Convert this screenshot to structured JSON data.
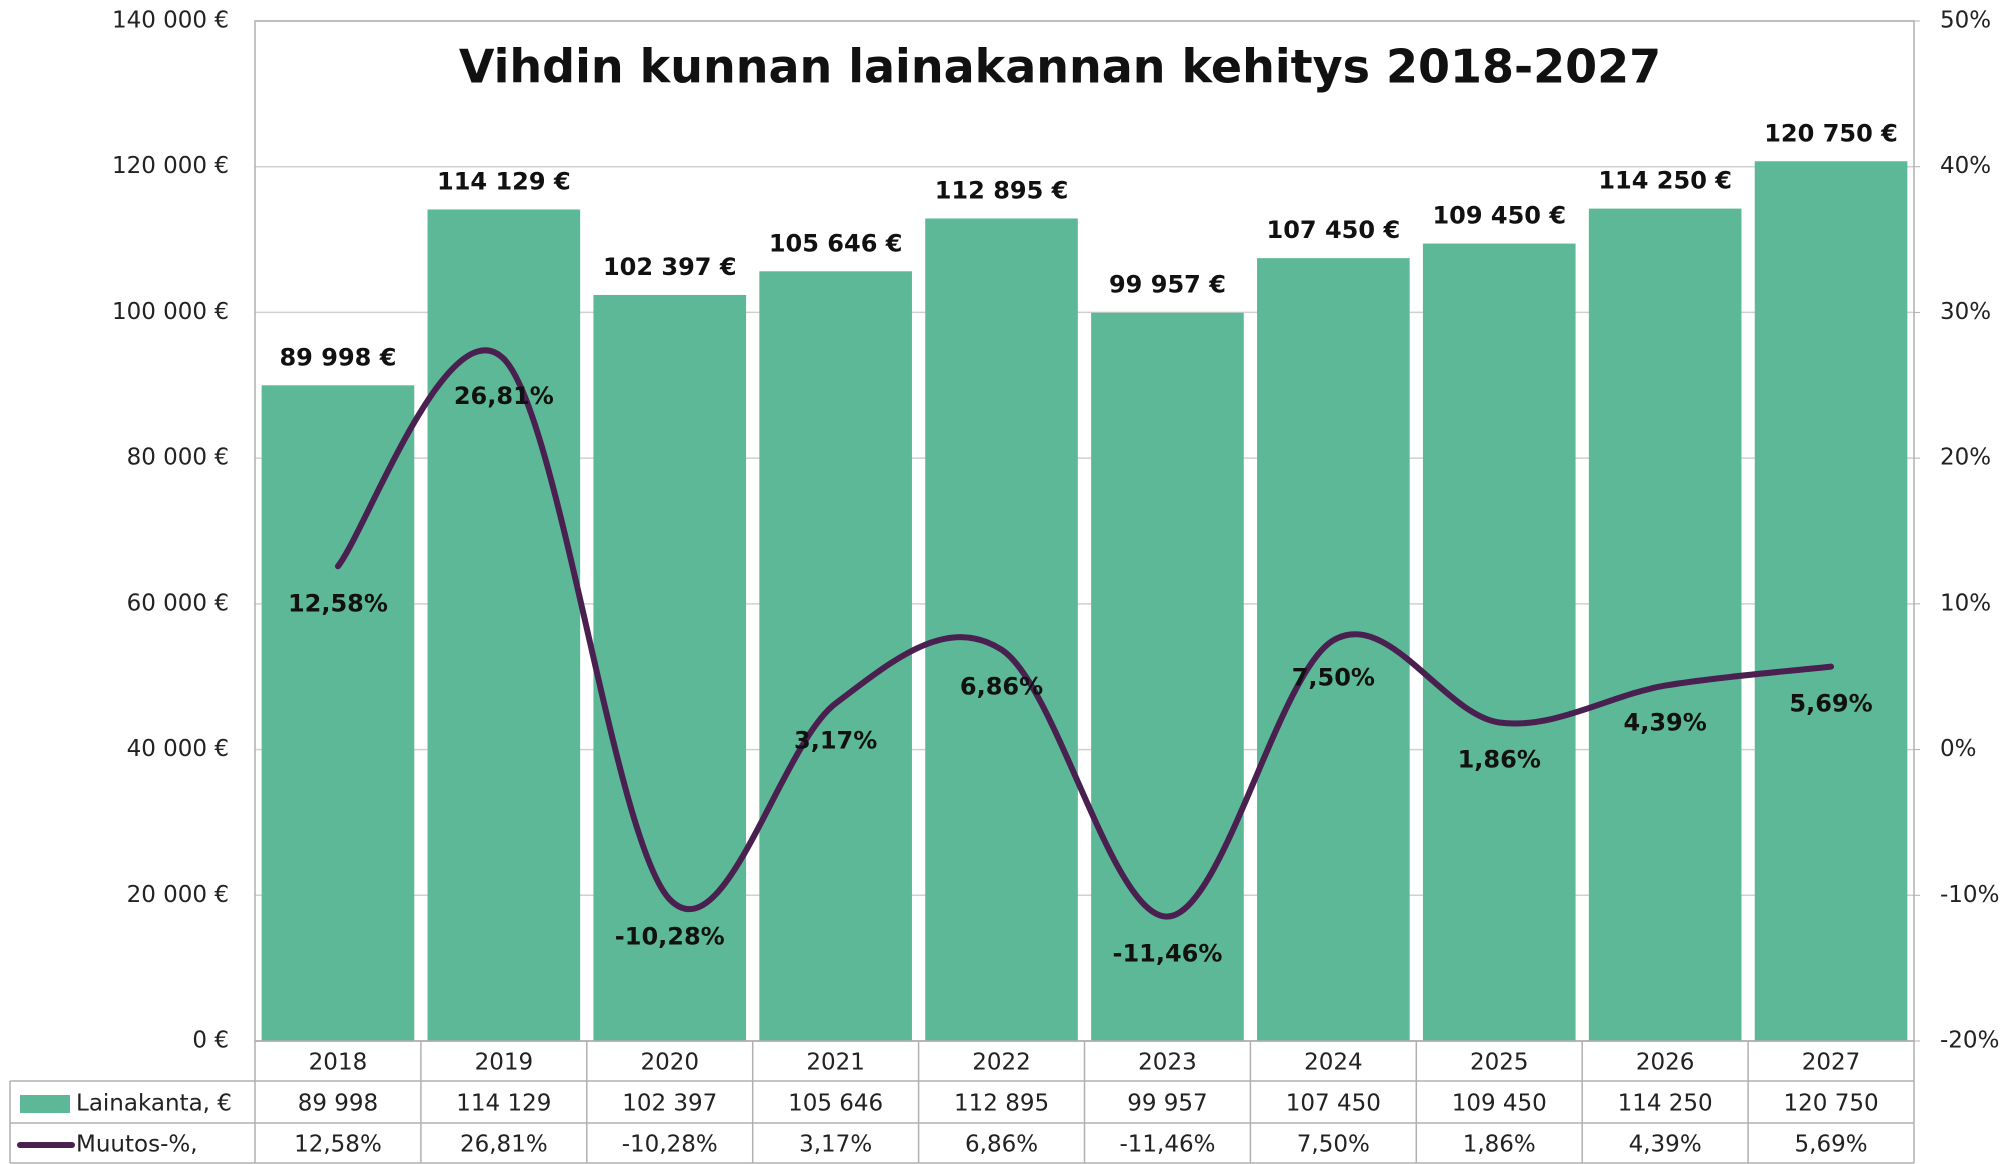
{
  "chart_data": {
    "type": "bar-line",
    "title": "Vihdin kunnan lainakannan kehitys 2018-2027",
    "categories": [
      "2018",
      "2019",
      "2020",
      "2021",
      "2022",
      "2023",
      "2024",
      "2025",
      "2026",
      "2027"
    ],
    "series": [
      {
        "name": "Lainakanta, €",
        "type": "bar",
        "color": "#5cb896",
        "values": [
          89998,
          114129,
          102397,
          105646,
          112895,
          99957,
          107450,
          109450,
          114250,
          120750
        ],
        "value_labels": [
          "89 998 €",
          "114 129 €",
          "102 397 €",
          "105 646 €",
          "112 895 €",
          "99 957 €",
          "107 450 €",
          "109 450 €",
          "114 250 €",
          "120 750 €"
        ],
        "table_labels": [
          "89 998",
          "114 129",
          "102 397",
          "105 646",
          "112 895",
          "99 957",
          "107 450",
          "109 450",
          "114 250",
          "120 750"
        ]
      },
      {
        "name": "Muutos-%,",
        "type": "line",
        "axis": "y2",
        "color": "#4a2050",
        "values": [
          12.58,
          26.81,
          -10.28,
          3.17,
          6.86,
          -11.46,
          7.5,
          1.86,
          4.39,
          5.69
        ],
        "value_labels": [
          "12,58%",
          "26,81%",
          "-10,28%",
          "3,17%",
          "6,86%",
          "-11,46%",
          "7,50%",
          "1,86%",
          "4,39%",
          "5,69%"
        ],
        "table_labels": [
          "12,58%",
          "26,81%",
          "-10,28%",
          "3,17%",
          "6,86%",
          "-11,46%",
          "7,50%",
          "1,86%",
          "4,39%",
          "5,69%"
        ]
      }
    ],
    "ylim": [
      0,
      140000
    ],
    "yticks": [
      {
        "value": 0,
        "label": "0 €"
      },
      {
        "value": 20000,
        "label": "20 000 €"
      },
      {
        "value": 40000,
        "label": "40 000 €"
      },
      {
        "value": 60000,
        "label": "60 000 €"
      },
      {
        "value": 80000,
        "label": "80 000 €"
      },
      {
        "value": 100000,
        "label": "100 000 €"
      },
      {
        "value": 120000,
        "label": "120 000 €"
      },
      {
        "value": 140000,
        "label": "140 000 €"
      }
    ],
    "y2lim": [
      -20,
      50
    ],
    "y2ticks": [
      {
        "value": -20,
        "label": "-20%"
      },
      {
        "value": -10,
        "label": "-10%"
      },
      {
        "value": 0,
        "label": "0%"
      },
      {
        "value": 10,
        "label": "10%"
      },
      {
        "value": 20,
        "label": "20%"
      },
      {
        "value": 30,
        "label": "30%"
      },
      {
        "value": 40,
        "label": "40%"
      },
      {
        "value": 50,
        "label": "50%"
      }
    ],
    "grid": true,
    "smooth": true
  }
}
